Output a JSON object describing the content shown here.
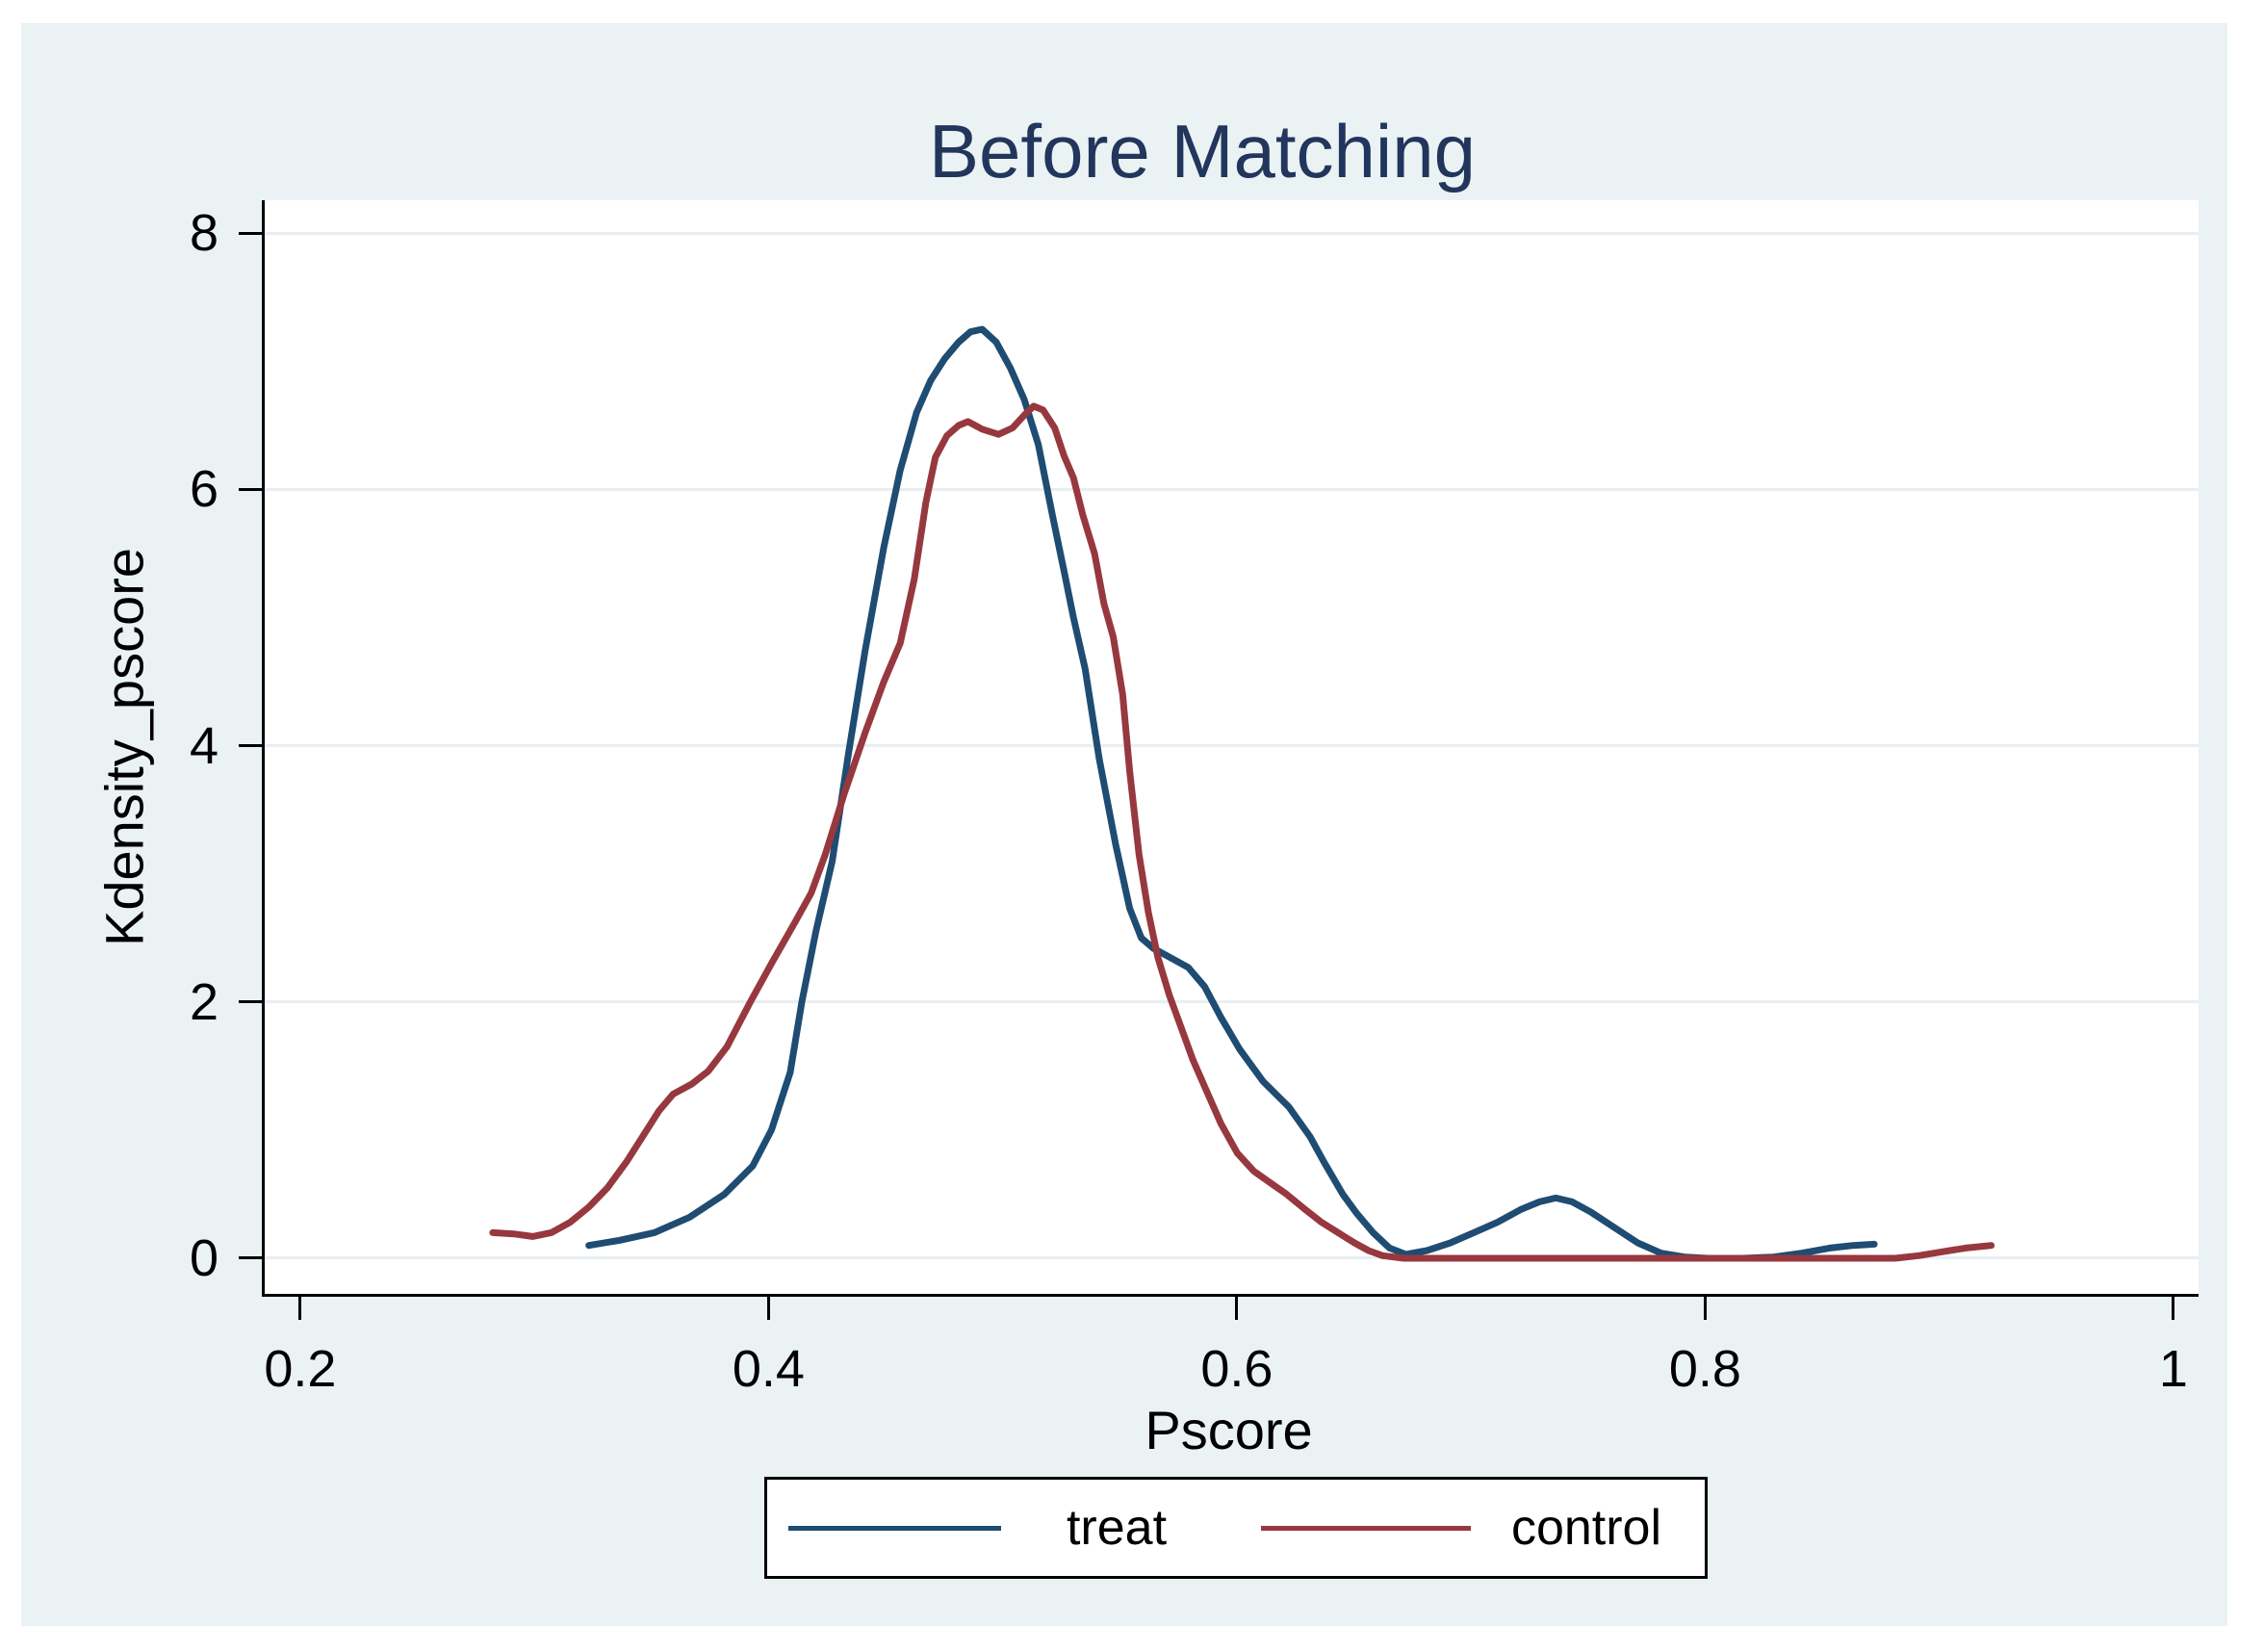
{
  "chart_data": {
    "type": "line",
    "title": "Before Matching",
    "xlabel": "Pscore",
    "ylabel": "Kdensity_pscore",
    "x_ticks": [
      0.2,
      0.4,
      0.6,
      0.8,
      1
    ],
    "x_tick_labels": [
      "0.2",
      "0.4",
      "0.6",
      "0.8",
      "1"
    ],
    "y_ticks": [
      0,
      2,
      4,
      6,
      8
    ],
    "y_tick_labels": [
      "0",
      "2",
      "4",
      "6",
      "8"
    ],
    "xlim": [
      0.1836,
      1.0095
    ],
    "ylim": [
      -0.278,
      8.257
    ],
    "grid": "horizontal-gridlines-at-y-ticks",
    "legend_position": "bottom-center",
    "series": [
      {
        "name": "treat",
        "color": "#1F4C72",
        "points": [
          [
            0.322,
            0.1
          ],
          [
            0.335,
            0.14
          ],
          [
            0.35,
            0.2
          ],
          [
            0.365,
            0.32
          ],
          [
            0.38,
            0.5
          ],
          [
            0.392,
            0.72
          ],
          [
            0.4,
            1.0
          ],
          [
            0.408,
            1.45
          ],
          [
            0.413,
            2.0
          ],
          [
            0.419,
            2.55
          ],
          [
            0.426,
            3.1
          ],
          [
            0.433,
            3.95
          ],
          [
            0.44,
            4.74
          ],
          [
            0.448,
            5.55
          ],
          [
            0.455,
            6.15
          ],
          [
            0.462,
            6.6
          ],
          [
            0.468,
            6.85
          ],
          [
            0.474,
            7.02
          ],
          [
            0.48,
            7.15
          ],
          [
            0.485,
            7.23
          ],
          [
            0.49,
            7.25
          ],
          [
            0.496,
            7.15
          ],
          [
            0.502,
            6.95
          ],
          [
            0.508,
            6.7
          ],
          [
            0.514,
            6.35
          ],
          [
            0.52,
            5.8
          ],
          [
            0.525,
            5.36
          ],
          [
            0.529,
            5.0
          ],
          [
            0.534,
            4.6
          ],
          [
            0.54,
            3.9
          ],
          [
            0.547,
            3.23
          ],
          [
            0.553,
            2.73
          ],
          [
            0.558,
            2.5
          ],
          [
            0.563,
            2.42
          ],
          [
            0.57,
            2.35
          ],
          [
            0.578,
            2.27
          ],
          [
            0.585,
            2.12
          ],
          [
            0.592,
            1.88
          ],
          [
            0.6,
            1.63
          ],
          [
            0.61,
            1.38
          ],
          [
            0.621,
            1.18
          ],
          [
            0.63,
            0.95
          ],
          [
            0.636,
            0.75
          ],
          [
            0.644,
            0.5
          ],
          [
            0.65,
            0.35
          ],
          [
            0.657,
            0.2
          ],
          [
            0.664,
            0.08
          ],
          [
            0.671,
            0.03
          ],
          [
            0.68,
            0.06
          ],
          [
            0.69,
            0.12
          ],
          [
            0.7,
            0.2
          ],
          [
            0.71,
            0.28
          ],
          [
            0.72,
            0.38
          ],
          [
            0.728,
            0.44
          ],
          [
            0.735,
            0.47
          ],
          [
            0.742,
            0.44
          ],
          [
            0.75,
            0.36
          ],
          [
            0.76,
            0.24
          ],
          [
            0.77,
            0.12
          ],
          [
            0.78,
            0.04
          ],
          [
            0.79,
            0.01
          ],
          [
            0.8,
            0.0
          ],
          [
            0.815,
            0.0
          ],
          [
            0.828,
            0.01
          ],
          [
            0.84,
            0.04
          ],
          [
            0.852,
            0.08
          ],
          [
            0.862,
            0.1
          ],
          [
            0.871,
            0.11
          ]
        ]
      },
      {
        "name": "control",
        "color": "#97383F",
        "points": [
          [
            0.281,
            0.2
          ],
          [
            0.29,
            0.19
          ],
          [
            0.298,
            0.17
          ],
          [
            0.306,
            0.2
          ],
          [
            0.314,
            0.28
          ],
          [
            0.322,
            0.4
          ],
          [
            0.33,
            0.55
          ],
          [
            0.338,
            0.75
          ],
          [
            0.345,
            0.95
          ],
          [
            0.352,
            1.15
          ],
          [
            0.358,
            1.28
          ],
          [
            0.366,
            1.36
          ],
          [
            0.373,
            1.46
          ],
          [
            0.381,
            1.65
          ],
          [
            0.391,
            2.0
          ],
          [
            0.4,
            2.3
          ],
          [
            0.41,
            2.62
          ],
          [
            0.417,
            2.85
          ],
          [
            0.423,
            3.15
          ],
          [
            0.431,
            3.62
          ],
          [
            0.44,
            4.1
          ],
          [
            0.448,
            4.5
          ],
          [
            0.455,
            4.8
          ],
          [
            0.461,
            5.3
          ],
          [
            0.466,
            5.9
          ],
          [
            0.47,
            6.25
          ],
          [
            0.475,
            6.42
          ],
          [
            0.48,
            6.5
          ],
          [
            0.484,
            6.53
          ],
          [
            0.49,
            6.47
          ],
          [
            0.497,
            6.43
          ],
          [
            0.503,
            6.48
          ],
          [
            0.508,
            6.58
          ],
          [
            0.512,
            6.65
          ],
          [
            0.516,
            6.62
          ],
          [
            0.521,
            6.48
          ],
          [
            0.525,
            6.26
          ],
          [
            0.529,
            6.09
          ],
          [
            0.533,
            5.8
          ],
          [
            0.538,
            5.5
          ],
          [
            0.542,
            5.11
          ],
          [
            0.546,
            4.85
          ],
          [
            0.55,
            4.4
          ],
          [
            0.553,
            3.8
          ],
          [
            0.557,
            3.15
          ],
          [
            0.561,
            2.7
          ],
          [
            0.565,
            2.35
          ],
          [
            0.57,
            2.05
          ],
          [
            0.575,
            1.8
          ],
          [
            0.58,
            1.55
          ],
          [
            0.586,
            1.3
          ],
          [
            0.592,
            1.05
          ],
          [
            0.599,
            0.82
          ],
          [
            0.606,
            0.68
          ],
          [
            0.613,
            0.59
          ],
          [
            0.62,
            0.5
          ],
          [
            0.628,
            0.38
          ],
          [
            0.635,
            0.28
          ],
          [
            0.642,
            0.2
          ],
          [
            0.649,
            0.12
          ],
          [
            0.655,
            0.06
          ],
          [
            0.661,
            0.02
          ],
          [
            0.67,
            0.0
          ],
          [
            0.7,
            0.0
          ],
          [
            0.75,
            0.0
          ],
          [
            0.8,
            0.0
          ],
          [
            0.85,
            0.0
          ],
          [
            0.88,
            0.0
          ],
          [
            0.89,
            0.02
          ],
          [
            0.9,
            0.05
          ],
          [
            0.91,
            0.08
          ],
          [
            0.921,
            0.1
          ]
        ]
      }
    ]
  },
  "colors": {
    "page_bg": "#FFFFFF",
    "panel_bg": "#EAF2F3",
    "plot_bg": "#FFFFFF",
    "gridline": "#E7EFF2",
    "axis_line": "#000000",
    "text": "#000000",
    "title": "#22355C"
  }
}
